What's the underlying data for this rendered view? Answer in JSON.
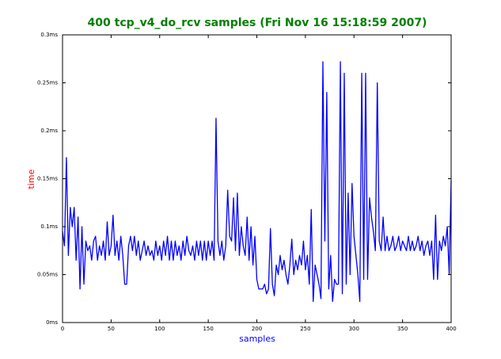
{
  "chart_data": {
    "type": "line",
    "title": "400 tcp_v4_do_rcv samples (Fri Nov 16 15:18:59 2007)",
    "xlabel": "samples",
    "ylabel": "time",
    "color": "#0000ff",
    "x": [
      0,
      2,
      4,
      6,
      8,
      10,
      12,
      14,
      16,
      18,
      20,
      22,
      24,
      26,
      28,
      30,
      32,
      34,
      36,
      38,
      40,
      42,
      44,
      46,
      48,
      50,
      52,
      54,
      56,
      58,
      60,
      62,
      64,
      66,
      68,
      70,
      72,
      74,
      76,
      78,
      80,
      82,
      84,
      86,
      88,
      90,
      92,
      94,
      96,
      98,
      100,
      102,
      104,
      106,
      108,
      110,
      112,
      114,
      116,
      118,
      120,
      122,
      124,
      126,
      128,
      130,
      132,
      134,
      136,
      138,
      140,
      142,
      144,
      146,
      148,
      150,
      152,
      154,
      156,
      158,
      160,
      162,
      164,
      166,
      168,
      170,
      172,
      174,
      176,
      178,
      180,
      182,
      184,
      186,
      188,
      190,
      192,
      194,
      196,
      198,
      200,
      202,
      204,
      206,
      208,
      210,
      212,
      214,
      216,
      218,
      220,
      222,
      224,
      226,
      228,
      230,
      232,
      234,
      236,
      238,
      240,
      242,
      244,
      246,
      248,
      250,
      252,
      254,
      256,
      258,
      260,
      262,
      264,
      266,
      268,
      270,
      272,
      274,
      276,
      278,
      280,
      282,
      284,
      286,
      288,
      290,
      292,
      294,
      296,
      298,
      300,
      302,
      304,
      306,
      308,
      310,
      312,
      314,
      316,
      318,
      320,
      322,
      324,
      326,
      328,
      330,
      332,
      334,
      336,
      338,
      340,
      342,
      344,
      346,
      348,
      350,
      352,
      354,
      356,
      358,
      360,
      362,
      364,
      366,
      368,
      370,
      372,
      374,
      376,
      378,
      380,
      382,
      384,
      386,
      388,
      390,
      392,
      394,
      396,
      398,
      400
    ],
    "values": [
      0.095,
      0.08,
      0.172,
      0.07,
      0.12,
      0.1,
      0.12,
      0.065,
      0.11,
      0.035,
      0.1,
      0.04,
      0.085,
      0.075,
      0.08,
      0.065,
      0.085,
      0.09,
      0.065,
      0.08,
      0.07,
      0.085,
      0.065,
      0.105,
      0.07,
      0.08,
      0.112,
      0.07,
      0.085,
      0.065,
      0.09,
      0.07,
      0.04,
      0.04,
      0.08,
      0.09,
      0.075,
      0.09,
      0.07,
      0.085,
      0.065,
      0.075,
      0.085,
      0.07,
      0.08,
      0.07,
      0.075,
      0.065,
      0.085,
      0.07,
      0.08,
      0.065,
      0.085,
      0.07,
      0.09,
      0.065,
      0.085,
      0.065,
      0.085,
      0.07,
      0.08,
      0.065,
      0.085,
      0.07,
      0.09,
      0.075,
      0.07,
      0.08,
      0.065,
      0.085,
      0.07,
      0.085,
      0.065,
      0.085,
      0.065,
      0.085,
      0.07,
      0.085,
      0.065,
      0.213,
      0.085,
      0.07,
      0.085,
      0.065,
      0.08,
      0.138,
      0.09,
      0.085,
      0.13,
      0.075,
      0.135,
      0.07,
      0.1,
      0.08,
      0.07,
      0.11,
      0.065,
      0.1,
      0.06,
      0.09,
      0.045,
      0.035,
      0.035,
      0.035,
      0.04,
      0.03,
      0.035,
      0.098,
      0.04,
      0.028,
      0.06,
      0.05,
      0.07,
      0.055,
      0.065,
      0.05,
      0.04,
      0.06,
      0.087,
      0.05,
      0.065,
      0.055,
      0.07,
      0.06,
      0.085,
      0.055,
      0.07,
      0.04,
      0.118,
      0.022,
      0.06,
      0.05,
      0.04,
      0.025,
      0.272,
      0.085,
      0.24,
      0.035,
      0.07,
      0.022,
      0.045,
      0.04,
      0.04,
      0.272,
      0.03,
      0.26,
      0.04,
      0.135,
      0.05,
      0.145,
      0.09,
      0.07,
      0.05,
      0.022,
      0.26,
      0.045,
      0.26,
      0.045,
      0.13,
      0.11,
      0.095,
      0.075,
      0.25,
      0.085,
      0.075,
      0.11,
      0.075,
      0.09,
      0.075,
      0.08,
      0.09,
      0.075,
      0.08,
      0.09,
      0.075,
      0.085,
      0.08,
      0.075,
      0.09,
      0.075,
      0.085,
      0.075,
      0.08,
      0.09,
      0.075,
      0.085,
      0.07,
      0.08,
      0.085,
      0.07,
      0.085,
      0.045,
      0.112,
      0.045,
      0.085,
      0.075,
      0.09,
      0.08,
      0.1,
      0.05,
      0.148
    ],
    "xlim": [
      0,
      400
    ],
    "xticks": [
      0,
      50,
      100,
      150,
      200,
      250,
      300,
      350,
      400
    ],
    "ylim": [
      0,
      0.3
    ],
    "yticks": [
      {
        "value": 0,
        "label": "0ms"
      },
      {
        "value": 0.05,
        "label": "0.05ms"
      },
      {
        "value": 0.1,
        "label": "0.1ms"
      },
      {
        "value": 0.15,
        "label": "0.15ms"
      },
      {
        "value": 0.2,
        "label": "0.2ms"
      },
      {
        "value": 0.25,
        "label": "0.25ms"
      },
      {
        "value": 0.3,
        "label": "0.3ms"
      }
    ]
  }
}
